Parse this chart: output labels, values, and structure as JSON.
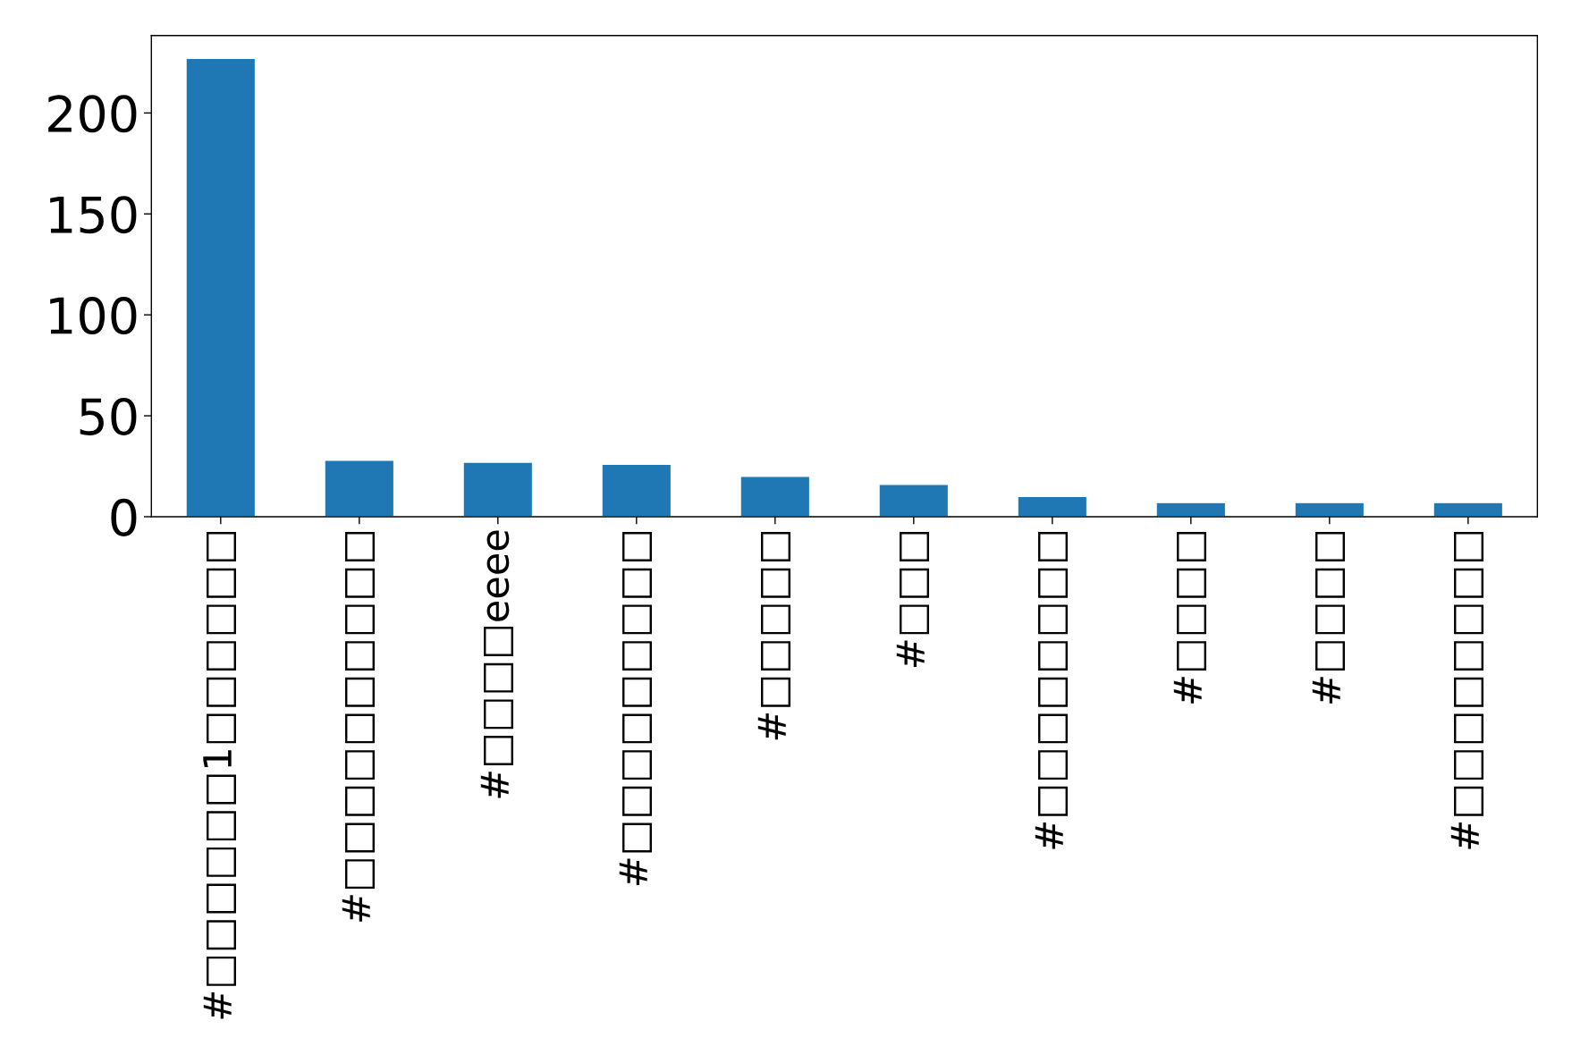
{
  "chart_data": {
    "type": "bar",
    "categories": [
      "#□□□□□□1□□□□□□",
      "#□□□□□□□□□□",
      "#□□□□eeee",
      "#□□□□□□□□□",
      "#□□□□□",
      "#□□□",
      "#□□□□□□□□",
      "#□□□□",
      "#□□□□",
      "#□□□□□□□□"
    ],
    "values": [
      227,
      28,
      27,
      26,
      20,
      16,
      10,
      7,
      7,
      7
    ],
    "color": "#1f77b4",
    "ylim": [
      0,
      238.35
    ],
    "yticks": [
      0,
      50,
      100,
      150,
      200
    ],
    "grid": false,
    "legend": false
  }
}
